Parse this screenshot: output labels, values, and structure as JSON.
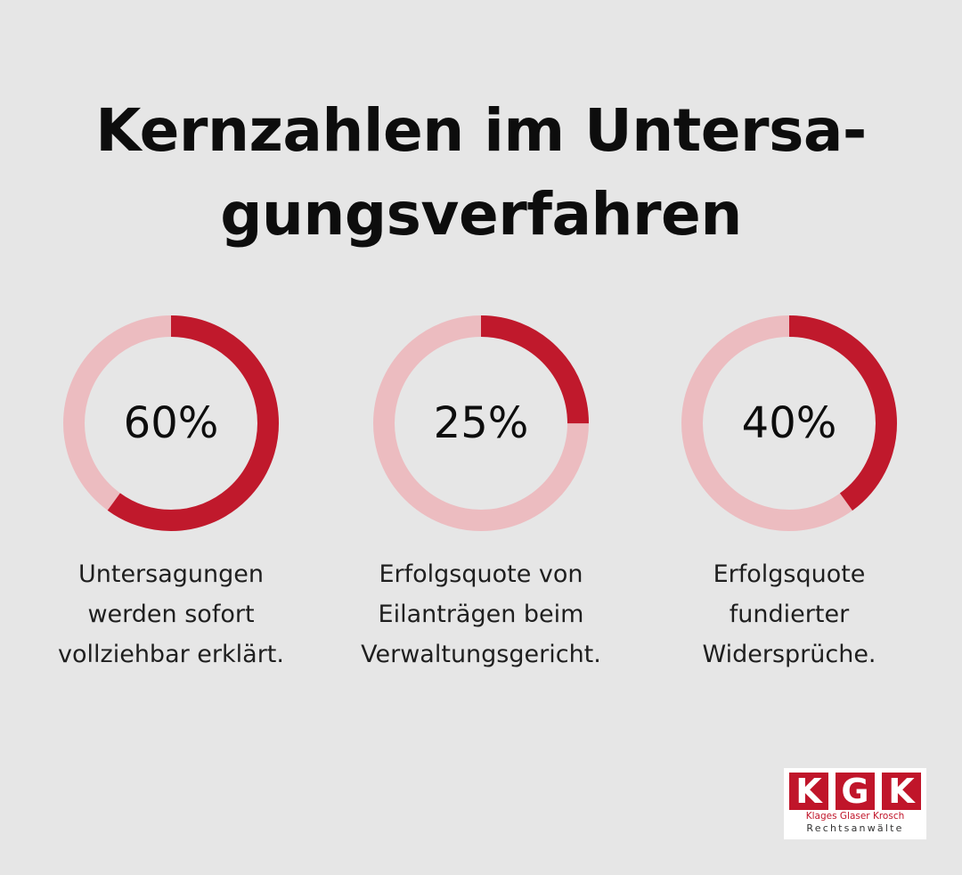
{
  "title": {
    "line1": "Kernzahlen im Untersa-",
    "line2": "gungsverfahren"
  },
  "colors": {
    "background": "#e6e6e6",
    "accent": "#c0192c",
    "track": "#ecbcc0",
    "text": "#0d0d0d"
  },
  "chart_data": {
    "type": "donut",
    "items": [
      {
        "value": 60,
        "label": "60%",
        "caption": [
          "Untersagungen",
          "werden sofort",
          "vollziehbar erklärt."
        ]
      },
      {
        "value": 25,
        "label": "25%",
        "caption": [
          "Erfolgsquote von",
          "Eilanträgen beim",
          "Verwaltungsgericht."
        ]
      },
      {
        "value": 40,
        "label": "40%",
        "caption": [
          "Erfolgsquote",
          "fundierter",
          "Widersprüche."
        ]
      }
    ]
  },
  "logo": {
    "letters": [
      "K",
      "G",
      "K"
    ],
    "names": "Klages Glaser Krosch",
    "subtitle": "Rechtsanwälte"
  }
}
